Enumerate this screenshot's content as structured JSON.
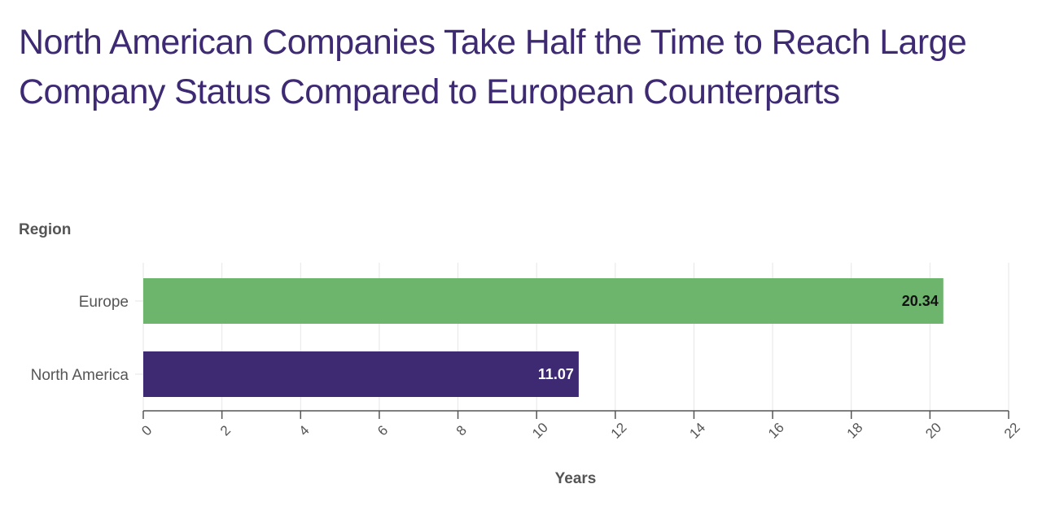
{
  "chart_data": {
    "type": "bar",
    "orientation": "horizontal",
    "title": "North American Companies Take Half the Time to Reach Large Company Status Compared to European Counterparts",
    "ylabel": "Region",
    "xlabel": "Years",
    "categories": [
      "Europe",
      "North America"
    ],
    "values": [
      20.34,
      11.07
    ],
    "data_labels": [
      "20.34",
      "11.07"
    ],
    "colors": [
      "#6db56d",
      "#3d2a73"
    ],
    "label_colors": [
      "#111111",
      "#ffffff"
    ],
    "xlim": [
      0,
      22
    ],
    "xticks": [
      0,
      2,
      4,
      6,
      8,
      10,
      12,
      14,
      16,
      18,
      20,
      22
    ],
    "grid": "vertical",
    "legend": "none"
  }
}
